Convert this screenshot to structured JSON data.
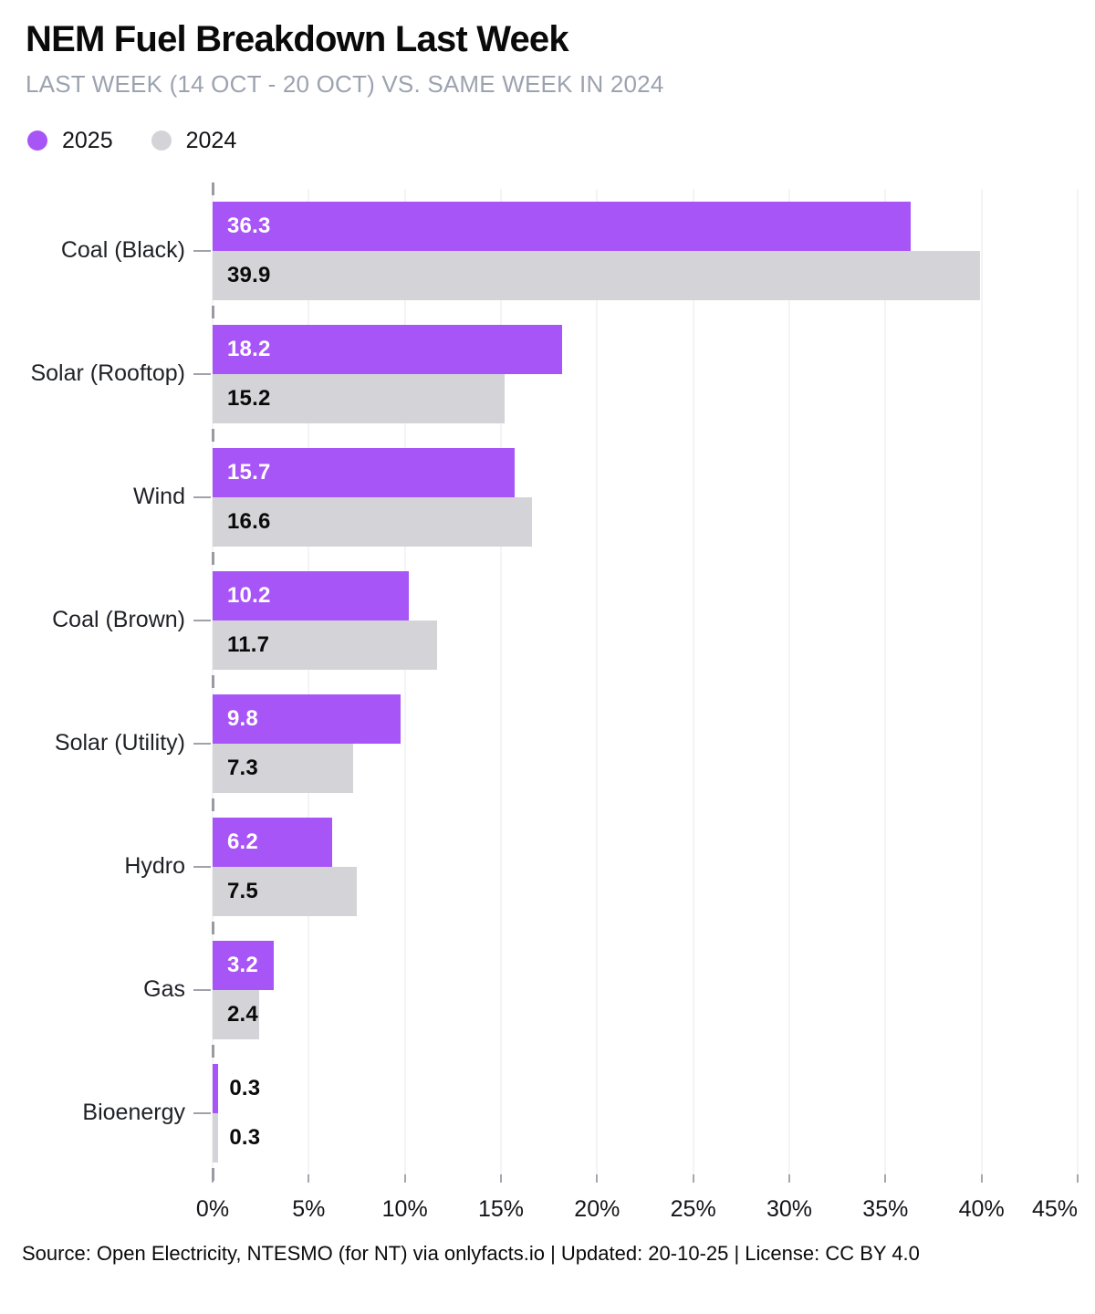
{
  "title": "NEM Fuel Breakdown Last Week",
  "subtitle": "LAST WEEK (14 OCT - 20 OCT) VS. SAME WEEK IN 2024",
  "legend": {
    "items": [
      {
        "label": "2025",
        "color": "#a855f7"
      },
      {
        "label": "2024",
        "color": "#d4d4d8"
      }
    ]
  },
  "chart_data": {
    "type": "bar",
    "orientation": "horizontal",
    "title": "NEM Fuel Breakdown Last Week",
    "subtitle": "LAST WEEK (14 OCT - 20 OCT) VS. SAME WEEK IN 2024",
    "unit": "%",
    "categories": [
      "Coal (Black)",
      "Solar (Rooftop)",
      "Wind",
      "Coal (Brown)",
      "Solar (Utility)",
      "Hydro",
      "Gas",
      "Bioenergy"
    ],
    "series": [
      {
        "name": "2025",
        "color": "#a855f7",
        "values": [
          36.3,
          18.2,
          15.7,
          10.2,
          9.8,
          6.2,
          3.2,
          0.3
        ]
      },
      {
        "name": "2024",
        "color": "#d4d4d8",
        "values": [
          39.9,
          15.2,
          16.6,
          11.7,
          7.3,
          7.5,
          2.4,
          0.3
        ]
      }
    ],
    "xlim": [
      0,
      45
    ],
    "x_tick_labels": [
      "0%",
      "5%",
      "10%",
      "15%",
      "20%",
      "25%",
      "30%",
      "35%",
      "40%",
      "45%"
    ],
    "x_tick_values": [
      0,
      5,
      10,
      15,
      20,
      25,
      30,
      35,
      40,
      45
    ],
    "grid": true,
    "legend_position": "top-left",
    "value_labels": true
  },
  "footer": "Source: Open Electricity, NTESMO (for NT) via onlyfacts.io | Updated: 20-10-25 | License: CC BY 4.0",
  "colors": {
    "series_2025": "#a855f7",
    "series_2024": "#d4d4d8",
    "grid_line": "#e9e9ed",
    "tick": "#a1a1aa",
    "title_text": "#0a0a0a",
    "subtitle_text": "#9ca3af",
    "value_on_purple": "#ffffff",
    "value_on_gray": "#0a0a0a",
    "background": "#ffffff"
  }
}
